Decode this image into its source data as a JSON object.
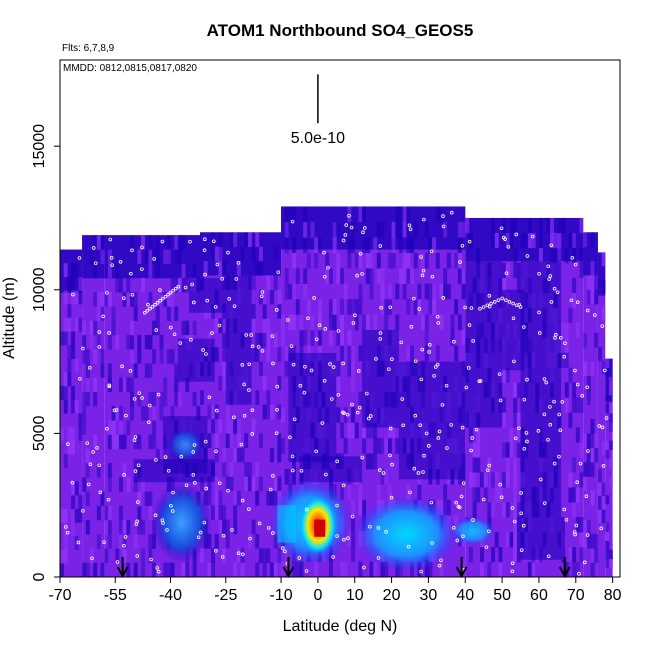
{
  "chart_data": {
    "type": "heatmap",
    "title": "ATOM1 Northbound SO4_GEOS5",
    "flights_label": "Flts: 6,7,8,9",
    "dates_label": "MMDD: 0812,0815,0817,0820",
    "xlabel": "Latitude (deg N)",
    "ylabel": "Altitude (m)",
    "xlim": [
      -70,
      82
    ],
    "ylim": [
      0,
      18000
    ],
    "x_tick_labels": [
      "-70",
      "-55",
      "-40",
      "-25",
      "-10",
      "0",
      "10",
      "20",
      "30",
      "40",
      "50",
      "60",
      "70",
      "80"
    ],
    "x_ticks": [
      -70,
      -55,
      -40,
      -25,
      -10,
      0,
      10,
      20,
      30,
      40,
      50,
      60,
      70,
      80
    ],
    "y_ticks": [
      0,
      5000,
      10000,
      15000
    ],
    "y_tick_labels": [
      "0",
      "5000",
      "10000",
      "15000"
    ],
    "scale_bar_label": "5.0e-10",
    "scale_bar_x": 0,
    "flight_arrows_lat": [
      -53,
      -8,
      39,
      67
    ],
    "colors": {
      "background_field": "#7a22e6",
      "low": "#1a00b8",
      "mid": "#1e90ff",
      "high": "#00e5ff",
      "peak_yellow": "#ffe600",
      "peak_orange": "#ff8c00",
      "peak_red": "#d00000",
      "track_points": "#ffffff"
    },
    "profile_top_altitude": [
      {
        "lat_from": -70,
        "lat_to": -64,
        "alt": 11400
      },
      {
        "lat_from": -64,
        "lat_to": -58,
        "alt": 11900
      },
      {
        "lat_from": -58,
        "lat_to": -32,
        "alt": 11900
      },
      {
        "lat_from": -32,
        "lat_to": -10,
        "alt": 12000
      },
      {
        "lat_from": -10,
        "lat_to": 40,
        "alt": 12900
      },
      {
        "lat_from": 40,
        "lat_to": 72,
        "alt": 12500
      },
      {
        "lat_from": 72,
        "lat_to": 76,
        "alt": 12000
      },
      {
        "lat_from": 76,
        "lat_to": 78,
        "alt": 11300
      },
      {
        "lat_from": 78,
        "lat_to": 80,
        "alt": 7600
      }
    ],
    "features": [
      {
        "lat_from": -45,
        "lat_to": -30,
        "alt_from": 500,
        "alt_to": 3300,
        "value": "medium-high"
      },
      {
        "lat_from": -12,
        "lat_to": 8,
        "alt_from": 500,
        "alt_to": 3300,
        "value": "high"
      },
      {
        "lat_from": -3,
        "lat_to": 4,
        "alt_from": 1000,
        "alt_to": 2800,
        "value": "peak"
      },
      {
        "lat_from": 12,
        "lat_to": 38,
        "alt_from": 500,
        "alt_to": 2600,
        "value": "medium-high"
      },
      {
        "lat_from": 36,
        "lat_to": 48,
        "alt_from": 1200,
        "alt_to": 2000,
        "value": "medium"
      },
      {
        "lat_from": -38,
        "lat_to": -30,
        "alt_from": 3700,
        "alt_to": 5500,
        "value": "low"
      },
      {
        "lat_from": 55,
        "lat_to": 66,
        "alt_from": 500,
        "alt_to": 11000,
        "value": "low"
      }
    ]
  }
}
